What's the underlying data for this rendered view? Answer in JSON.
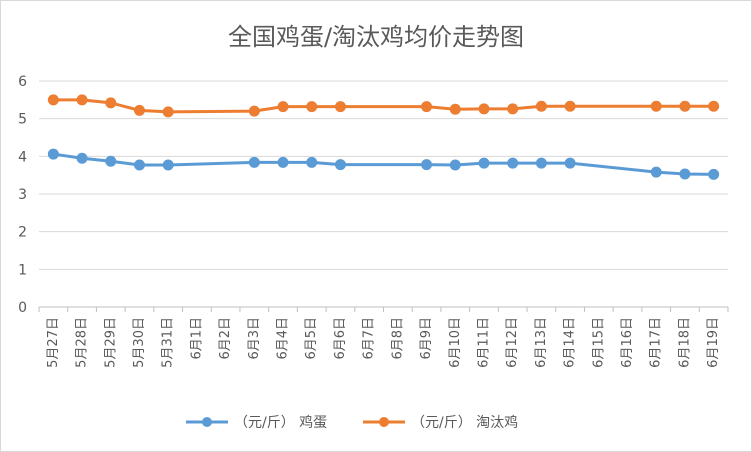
{
  "chart_data": {
    "type": "line",
    "title": "全国鸡蛋/淘汰鸡均价走势图",
    "categories": [
      "5月27日",
      "5月28日",
      "5月29日",
      "5月30日",
      "5月31日",
      "6月1日",
      "6月2日",
      "6月3日",
      "6月4日",
      "6月5日",
      "6月6日",
      "6月7日",
      "6月8日",
      "6月9日",
      "6月10日",
      "6月11日",
      "6月12日",
      "6月13日",
      "6月14日",
      "6月15日",
      "6月16日",
      "6月17日",
      "6月18日",
      "6月19日"
    ],
    "ylim": [
      0,
      6
    ],
    "yticks": [
      "0",
      "1",
      "2",
      "3",
      "4",
      "5",
      "6"
    ],
    "grid": true,
    "legend_position": "bottom",
    "series": [
      {
        "name": "（元/斤） 鸡蛋",
        "color": "#5b9bd5",
        "values": [
          4.06,
          3.95,
          3.87,
          3.77,
          3.77,
          null,
          null,
          3.84,
          3.84,
          3.84,
          3.78,
          null,
          null,
          3.78,
          3.77,
          3.82,
          3.82,
          3.82,
          3.82,
          null,
          null,
          3.58,
          3.53,
          3.52
        ]
      },
      {
        "name": "（元/斤） 淘汰鸡",
        "color": "#ed7d31",
        "values": [
          5.5,
          5.5,
          5.42,
          5.22,
          5.18,
          null,
          null,
          5.2,
          5.32,
          5.32,
          5.32,
          null,
          null,
          5.32,
          5.25,
          5.26,
          5.26,
          5.33,
          5.33,
          null,
          null,
          5.33,
          5.33,
          5.33
        ]
      }
    ]
  }
}
